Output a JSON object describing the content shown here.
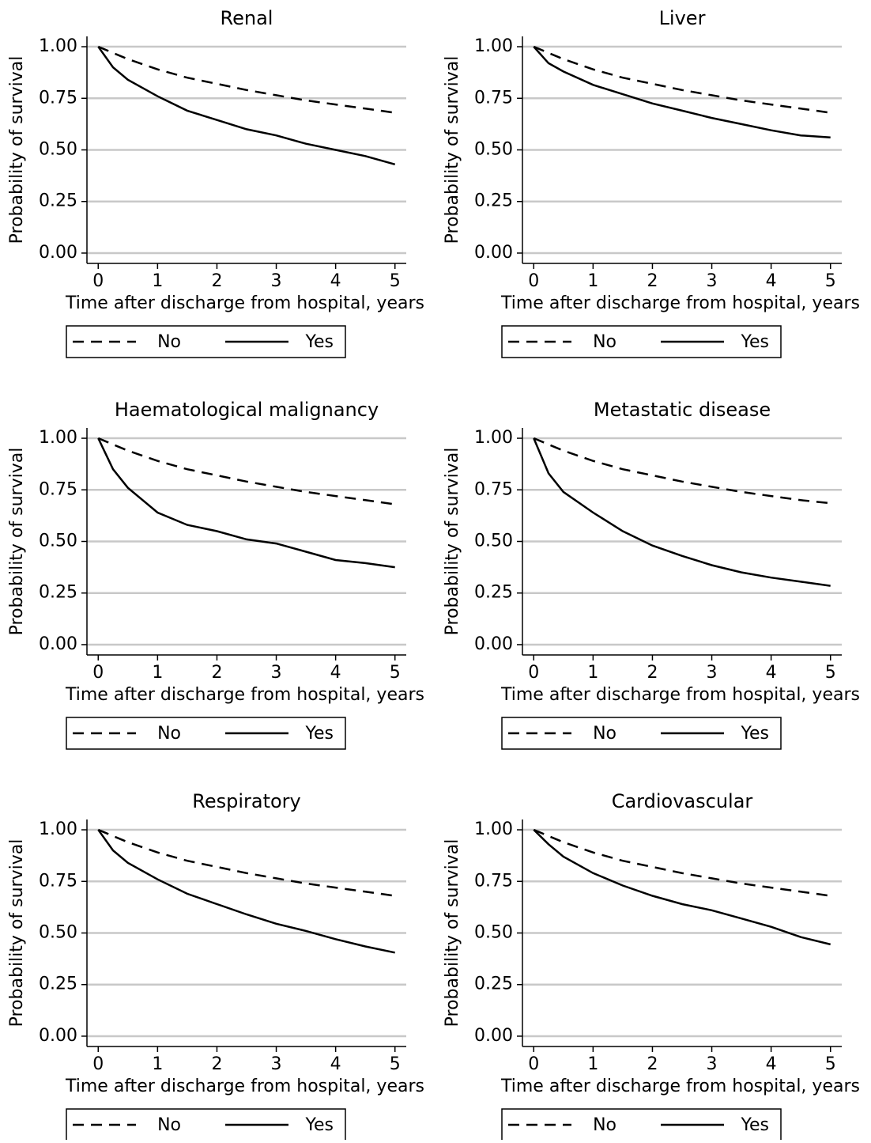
{
  "chart_data": [
    {
      "type": "line",
      "title": "Renal",
      "xlabel": "Time after discharge from hospital, years",
      "ylabel": "Probability of survival",
      "x": [
        0,
        0.25,
        0.5,
        1,
        1.5,
        2,
        2.5,
        3,
        3.5,
        4,
        4.5,
        5
      ],
      "series": [
        {
          "name": "No",
          "color": "#000000",
          "linestyle": "dashed",
          "values": [
            1.0,
            0.97,
            0.94,
            0.89,
            0.85,
            0.82,
            0.79,
            0.765,
            0.74,
            0.72,
            0.7,
            0.68
          ]
        },
        {
          "name": "Yes",
          "color": "#000000",
          "linestyle": "solid",
          "values": [
            1.0,
            0.9,
            0.84,
            0.76,
            0.69,
            0.645,
            0.6,
            0.57,
            0.53,
            0.5,
            0.47,
            0.43
          ]
        }
      ],
      "xlim": [
        -0.19,
        5.19
      ],
      "xticks": [
        0,
        1,
        2,
        3,
        4,
        5
      ],
      "ylim": [
        -0.05,
        1.05
      ],
      "yticks": [
        {
          "value": 0,
          "label": "0.00"
        },
        {
          "value": 0.25,
          "label": "0.25"
        },
        {
          "value": 0.5,
          "label": "0.50"
        },
        {
          "value": 0.75,
          "label": "0.75"
        },
        {
          "value": 1,
          "label": "1.00"
        }
      ],
      "grid": true,
      "legend": "bottom"
    },
    {
      "type": "line",
      "title": "Liver",
      "xlabel": "Time after discharge from hospital, years",
      "ylabel": "Probability of survival",
      "x": [
        0,
        0.25,
        0.5,
        1,
        1.5,
        2,
        2.5,
        3,
        3.5,
        4,
        4.5,
        5
      ],
      "series": [
        {
          "name": "No",
          "color": "#000000",
          "linestyle": "dashed",
          "values": [
            1.0,
            0.97,
            0.94,
            0.89,
            0.85,
            0.82,
            0.79,
            0.765,
            0.74,
            0.72,
            0.7,
            0.68
          ]
        },
        {
          "name": "Yes",
          "color": "#000000",
          "linestyle": "solid",
          "values": [
            1.0,
            0.92,
            0.88,
            0.815,
            0.77,
            0.725,
            0.69,
            0.655,
            0.625,
            0.595,
            0.57,
            0.56
          ]
        }
      ],
      "xlim": [
        -0.19,
        5.19
      ],
      "xticks": [
        0,
        1,
        2,
        3,
        4,
        5
      ],
      "ylim": [
        -0.05,
        1.05
      ],
      "yticks": [
        {
          "value": 0,
          "label": "0.00"
        },
        {
          "value": 0.25,
          "label": "0.25"
        },
        {
          "value": 0.5,
          "label": "0.50"
        },
        {
          "value": 0.75,
          "label": "0.75"
        },
        {
          "value": 1,
          "label": "1.00"
        }
      ],
      "grid": true,
      "legend": "bottom"
    },
    {
      "type": "line",
      "title": "Haematological malignancy",
      "xlabel": "Time after discharge from hospital, years",
      "ylabel": "Probability of survival",
      "x": [
        0,
        0.25,
        0.5,
        1,
        1.5,
        2,
        2.5,
        3,
        3.5,
        4,
        4.5,
        5
      ],
      "series": [
        {
          "name": "No",
          "color": "#000000",
          "linestyle": "dashed",
          "values": [
            1.0,
            0.97,
            0.94,
            0.89,
            0.85,
            0.82,
            0.79,
            0.765,
            0.74,
            0.72,
            0.7,
            0.68
          ]
        },
        {
          "name": "Yes",
          "color": "#000000",
          "linestyle": "solid",
          "values": [
            1.0,
            0.85,
            0.76,
            0.64,
            0.58,
            0.55,
            0.51,
            0.49,
            0.45,
            0.41,
            0.395,
            0.375
          ]
        }
      ],
      "xlim": [
        -0.19,
        5.19
      ],
      "xticks": [
        0,
        1,
        2,
        3,
        4,
        5
      ],
      "ylim": [
        -0.05,
        1.05
      ],
      "yticks": [
        {
          "value": 0,
          "label": "0.00"
        },
        {
          "value": 0.25,
          "label": "0.25"
        },
        {
          "value": 0.5,
          "label": "0.50"
        },
        {
          "value": 0.75,
          "label": "0.75"
        },
        {
          "value": 1,
          "label": "1.00"
        }
      ],
      "grid": true,
      "legend": "bottom"
    },
    {
      "type": "line",
      "title": "Metastatic disease",
      "xlabel": "Time after discharge from hospital, years",
      "ylabel": "Probability of survival",
      "x": [
        0,
        0.25,
        0.5,
        1,
        1.5,
        2,
        2.5,
        3,
        3.5,
        4,
        4.5,
        5
      ],
      "series": [
        {
          "name": "No",
          "color": "#000000",
          "linestyle": "dashed",
          "values": [
            1.0,
            0.97,
            0.94,
            0.89,
            0.85,
            0.82,
            0.79,
            0.765,
            0.74,
            0.72,
            0.7,
            0.685
          ]
        },
        {
          "name": "Yes",
          "color": "#000000",
          "linestyle": "solid",
          "values": [
            1.0,
            0.83,
            0.74,
            0.64,
            0.55,
            0.48,
            0.43,
            0.385,
            0.35,
            0.325,
            0.305,
            0.285
          ]
        }
      ],
      "xlim": [
        -0.19,
        5.19
      ],
      "xticks": [
        0,
        1,
        2,
        3,
        4,
        5
      ],
      "ylim": [
        -0.05,
        1.05
      ],
      "yticks": [
        {
          "value": 0,
          "label": "0.00"
        },
        {
          "value": 0.25,
          "label": "0.25"
        },
        {
          "value": 0.5,
          "label": "0.50"
        },
        {
          "value": 0.75,
          "label": "0.75"
        },
        {
          "value": 1,
          "label": "1.00"
        }
      ],
      "grid": true,
      "legend": "bottom"
    },
    {
      "type": "line",
      "title": "Respiratory",
      "xlabel": "Time after discharge from hospital, years",
      "ylabel": "Probability of survival",
      "x": [
        0,
        0.25,
        0.5,
        1,
        1.5,
        2,
        2.5,
        3,
        3.5,
        4,
        4.5,
        5
      ],
      "series": [
        {
          "name": "No",
          "color": "#000000",
          "linestyle": "dashed",
          "values": [
            1.0,
            0.97,
            0.94,
            0.89,
            0.85,
            0.82,
            0.79,
            0.765,
            0.74,
            0.72,
            0.7,
            0.68
          ]
        },
        {
          "name": "Yes",
          "color": "#000000",
          "linestyle": "solid",
          "values": [
            1.0,
            0.9,
            0.84,
            0.76,
            0.69,
            0.64,
            0.59,
            0.545,
            0.51,
            0.47,
            0.435,
            0.405
          ]
        }
      ],
      "xlim": [
        -0.19,
        5.19
      ],
      "xticks": [
        0,
        1,
        2,
        3,
        4,
        5
      ],
      "ylim": [
        -0.05,
        1.05
      ],
      "yticks": [
        {
          "value": 0,
          "label": "0.00"
        },
        {
          "value": 0.25,
          "label": "0.25"
        },
        {
          "value": 0.5,
          "label": "0.50"
        },
        {
          "value": 0.75,
          "label": "0.75"
        },
        {
          "value": 1,
          "label": "1.00"
        }
      ],
      "grid": true,
      "legend": "bottom"
    },
    {
      "type": "line",
      "title": "Cardiovascular",
      "xlabel": "Time after discharge from hospital, years",
      "ylabel": "Probability of survival",
      "x": [
        0,
        0.25,
        0.5,
        1,
        1.5,
        2,
        2.5,
        3,
        3.5,
        4,
        4.5,
        5
      ],
      "series": [
        {
          "name": "No",
          "color": "#000000",
          "linestyle": "dashed",
          "values": [
            1.0,
            0.97,
            0.94,
            0.89,
            0.85,
            0.82,
            0.79,
            0.765,
            0.74,
            0.72,
            0.7,
            0.68
          ]
        },
        {
          "name": "Yes",
          "color": "#000000",
          "linestyle": "solid",
          "values": [
            1.0,
            0.93,
            0.87,
            0.79,
            0.73,
            0.68,
            0.64,
            0.61,
            0.57,
            0.53,
            0.48,
            0.445
          ]
        }
      ],
      "xlim": [
        -0.19,
        5.19
      ],
      "xticks": [
        0,
        1,
        2,
        3,
        4,
        5
      ],
      "ylim": [
        -0.05,
        1.05
      ],
      "yticks": [
        {
          "value": 0,
          "label": "0.00"
        },
        {
          "value": 0.25,
          "label": "0.25"
        },
        {
          "value": 0.5,
          "label": "0.50"
        },
        {
          "value": 0.75,
          "label": "0.75"
        },
        {
          "value": 1,
          "label": "1.00"
        }
      ],
      "grid": true,
      "legend": "bottom"
    }
  ]
}
